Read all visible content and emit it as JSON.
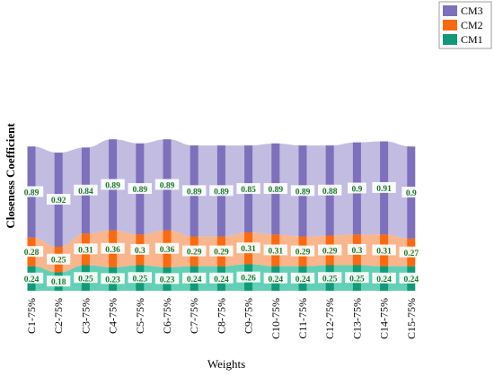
{
  "chart_data": {
    "type": "bar",
    "stacked": true,
    "categories": [
      "C1-75%",
      "C2-75%",
      "C3-75%",
      "C4-75%",
      "C5-75%",
      "C6-75%",
      "C7-75%",
      "C8-75%",
      "C9-75%",
      "C10-75%",
      "C11-75%",
      "C12-75%",
      "C13-75%",
      "C14-75%",
      "C15-75%"
    ],
    "series": [
      {
        "name": "CM1",
        "color": "#129a78",
        "band_color": "#48c8a8",
        "values": [
          0.24,
          0.18,
          0.25,
          0.23,
          0.25,
          0.23,
          0.24,
          0.24,
          0.26,
          0.24,
          0.24,
          0.25,
          0.25,
          0.24,
          0.24
        ]
      },
      {
        "name": "CM2",
        "color": "#fa6a10",
        "band_color": "#f8a878",
        "values": [
          0.28,
          0.25,
          0.31,
          0.36,
          0.3,
          0.36,
          0.29,
          0.29,
          0.31,
          0.31,
          0.29,
          0.29,
          0.3,
          0.31,
          0.27
        ]
      },
      {
        "name": "CM3",
        "color": "#7e70ba",
        "band_color": "#b6b0da",
        "values": [
          0.89,
          0.92,
          0.84,
          0.89,
          0.89,
          0.89,
          0.89,
          0.89,
          0.85,
          0.89,
          0.89,
          0.88,
          0.9,
          0.91,
          0.9
        ]
      }
    ],
    "xlabel": "Weights",
    "ylabel": "Closeness Coefficient",
    "legend_order": [
      "CM3",
      "CM2",
      "CM1"
    ],
    "legend_position": "top-right",
    "grid": false
  }
}
